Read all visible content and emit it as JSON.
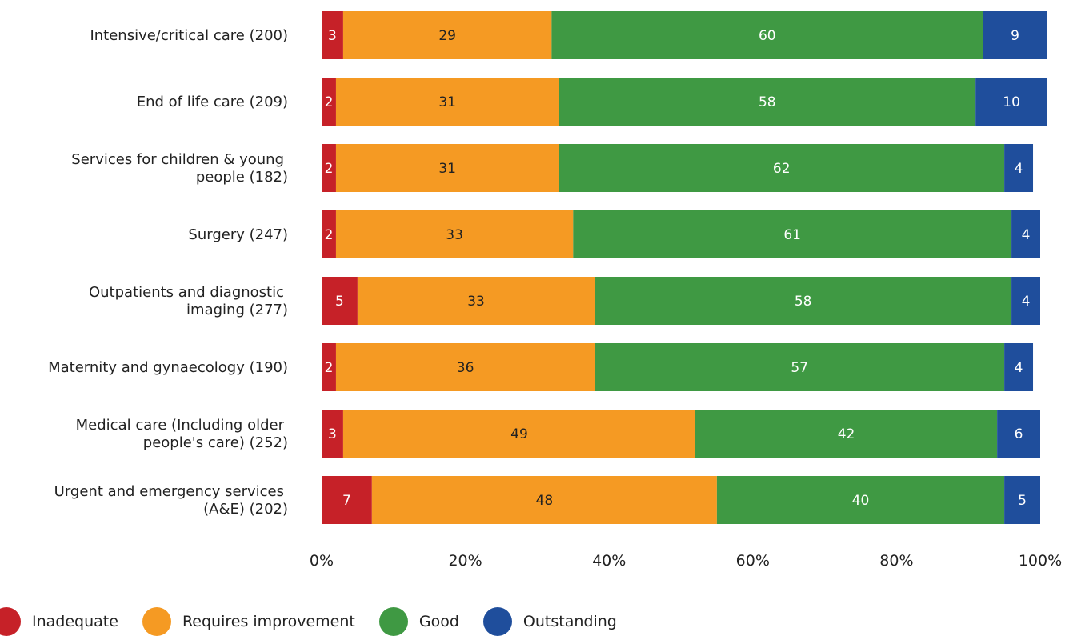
{
  "chart_data": {
    "type": "bar",
    "orientation": "horizontal",
    "stacked": true,
    "categories": [
      [
        "Intensive/critical care (200)"
      ],
      [
        "End of life care (209)"
      ],
      [
        "Services for children & young",
        "people (182)"
      ],
      [
        "Surgery (247)"
      ],
      [
        "Outpatients and diagnostic",
        "imaging (277)"
      ],
      [
        "Maternity and gynaecology (190)"
      ],
      [
        "Medical care (Including older",
        "people's care) (252)"
      ],
      [
        "Urgent and emergency services",
        "(A&E) (202)"
      ]
    ],
    "series": [
      {
        "name": "Inadequate",
        "color": "#c62128",
        "label_color": "#ffffff",
        "values": [
          3,
          2,
          2,
          2,
          5,
          2,
          3,
          7
        ]
      },
      {
        "name": "Requires improvement",
        "color": "#f59a23",
        "label_color": "#222222",
        "values": [
          29,
          31,
          31,
          33,
          33,
          36,
          49,
          48
        ]
      },
      {
        "name": "Good",
        "color": "#3f9943",
        "label_color": "#ffffff",
        "values": [
          60,
          58,
          62,
          61,
          58,
          57,
          42,
          40
        ]
      },
      {
        "name": "Outstanding",
        "color": "#1f4e9c",
        "label_color": "#ffffff",
        "values": [
          9,
          10,
          4,
          4,
          4,
          4,
          6,
          5
        ]
      }
    ],
    "xlim": [
      0,
      100
    ],
    "xticks": [
      "0%",
      "20%",
      "40%",
      "60%",
      "80%",
      "100%"
    ],
    "xlabel": "",
    "ylabel": "",
    "title": "",
    "grid": false,
    "legend_position": "bottom-left"
  }
}
